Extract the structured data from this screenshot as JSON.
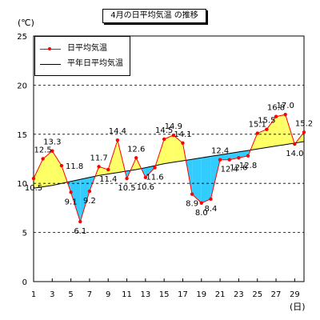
{
  "chart_data": {
    "type": "line",
    "title": "4月の日平均気温 の推移",
    "ylabel": "(℃)",
    "xlabel": "(日)",
    "ylim": [
      0,
      25
    ],
    "yticks": [
      0,
      5,
      10,
      15,
      20,
      25
    ],
    "xlim": [
      1,
      30
    ],
    "xticks": [
      1,
      3,
      5,
      7,
      9,
      11,
      13,
      15,
      17,
      19,
      21,
      23,
      25,
      27,
      29
    ],
    "grid": "horizontal-dashed",
    "legend_position": "top-left",
    "x": [
      1,
      2,
      3,
      4,
      5,
      6,
      7,
      8,
      9,
      10,
      11,
      12,
      13,
      14,
      15,
      16,
      17,
      18,
      19,
      20,
      21,
      22,
      23,
      24,
      25,
      26,
      27,
      28,
      29,
      30
    ],
    "series": [
      {
        "name": "日平均気温",
        "color": "#ff0000",
        "values": [
          10.5,
          12.5,
          13.3,
          11.8,
          9.1,
          6.1,
          9.2,
          11.7,
          11.4,
          14.4,
          10.5,
          12.6,
          10.6,
          11.6,
          14.5,
          14.9,
          14.1,
          8.9,
          8.0,
          8.4,
          12.4,
          12.4,
          12.6,
          12.8,
          15.1,
          15.5,
          16.8,
          17.0,
          14.0,
          15.2
        ]
      },
      {
        "name": "平年日平均気温",
        "color": "#000000",
        "values": [
          9.5,
          9.65,
          9.8,
          10.0,
          10.2,
          10.4,
          10.6,
          10.8,
          10.95,
          11.1,
          11.25,
          11.4,
          11.6,
          11.8,
          12.0,
          12.15,
          12.3,
          12.45,
          12.6,
          12.75,
          12.9,
          13.05,
          13.2,
          13.35,
          13.5,
          13.65,
          13.8,
          13.95,
          14.1,
          14.25
        ]
      }
    ],
    "fill_above_color": "#ffff66",
    "fill_below_color": "#33ccff",
    "data_labels": [
      {
        "day": 1,
        "text": "10.5",
        "pos": "below"
      },
      {
        "day": 2,
        "text": "12.5",
        "pos": "above"
      },
      {
        "day": 3,
        "text": "13.3",
        "pos": "above"
      },
      {
        "day": 4,
        "text": "11.8",
        "pos": "right"
      },
      {
        "day": 5,
        "text": "9.1",
        "pos": "below"
      },
      {
        "day": 6,
        "text": "6.1",
        "pos": "below"
      },
      {
        "day": 7,
        "text": "9.2",
        "pos": "below"
      },
      {
        "day": 8,
        "text": "11.7",
        "pos": "above"
      },
      {
        "day": 9,
        "text": "11.4",
        "pos": "below"
      },
      {
        "day": 10,
        "text": "14.4",
        "pos": "above"
      },
      {
        "day": 11,
        "text": "10.5",
        "pos": "below"
      },
      {
        "day": 12,
        "text": "12.6",
        "pos": "above"
      },
      {
        "day": 13,
        "text": "10.6",
        "pos": "below"
      },
      {
        "day": 14,
        "text": "11.6",
        "pos": "below"
      },
      {
        "day": 15,
        "text": "14.5",
        "pos": "above"
      },
      {
        "day": 16,
        "text": "14.9",
        "pos": "above"
      },
      {
        "day": 17,
        "text": "14.1",
        "pos": "above"
      },
      {
        "day": 18,
        "text": "8.9",
        "pos": "below"
      },
      {
        "day": 19,
        "text": "8.0",
        "pos": "below"
      },
      {
        "day": 20,
        "text": "8.4",
        "pos": "below"
      },
      {
        "day": 21,
        "text": "12.4",
        "pos": "above"
      },
      {
        "day": 22,
        "text": "12.4",
        "pos": "below"
      },
      {
        "day": 23,
        "text": "12.6",
        "pos": "below"
      },
      {
        "day": 24,
        "text": "12.8",
        "pos": "below"
      },
      {
        "day": 25,
        "text": "15.1",
        "pos": "above"
      },
      {
        "day": 26,
        "text": "15.5",
        "pos": "above"
      },
      {
        "day": 27,
        "text": "16.8",
        "pos": "above"
      },
      {
        "day": 28,
        "text": "17.0",
        "pos": "above"
      },
      {
        "day": 29,
        "text": "14.0",
        "pos": "below"
      },
      {
        "day": 30,
        "text": "15.2",
        "pos": "above"
      }
    ]
  }
}
